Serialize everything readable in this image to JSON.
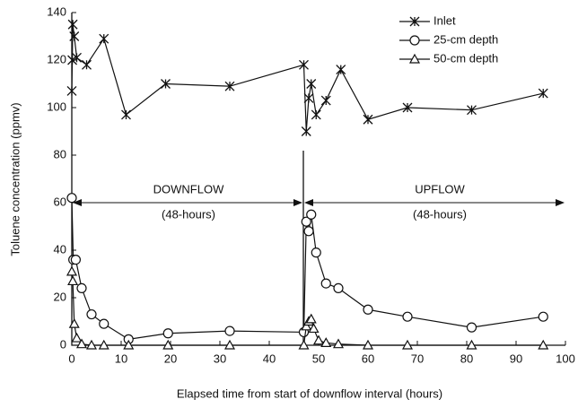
{
  "chart_data": {
    "type": "line",
    "x_label": "Elapsed time from start of downflow interval (hours)",
    "y_label": "Toluene concentration (ppmv)",
    "xlim": [
      0,
      100
    ],
    "xticks": [
      0,
      10,
      20,
      30,
      40,
      50,
      60,
      70,
      80,
      90,
      100
    ],
    "ylim": [
      0,
      140
    ],
    "yticks": [
      0,
      20,
      40,
      60,
      80,
      100,
      120,
      140
    ],
    "legend": "upper right",
    "annotations": [
      "DOWNFLOW",
      "(48-hours)",
      "UPFLOW",
      "(48-hours)"
    ],
    "series": [
      {
        "name": "Inlet",
        "color": "#111111",
        "marker": "asterisk",
        "x": [
          0,
          0.1,
          0.2,
          0.5,
          1,
          3,
          6.5,
          11,
          19,
          32,
          47,
          47.5,
          48,
          48.5,
          49.5,
          51.5,
          54.5,
          60,
          68,
          81,
          95.5
        ],
        "values": [
          107,
          120,
          135,
          130,
          121,
          118,
          129,
          97,
          110,
          109,
          118,
          90,
          104,
          110,
          97,
          103,
          116,
          95,
          100,
          99,
          106
        ]
      },
      {
        "name": "25-cm depth",
        "color": "#111111",
        "marker": "circle",
        "x": [
          0,
          0.3,
          0.8,
          2,
          4,
          6.5,
          11.5,
          19.5,
          32,
          47,
          47.5,
          48,
          48.5,
          49.5,
          51.5,
          54,
          60,
          68,
          81,
          95.5
        ],
        "values": [
          62,
          36,
          36,
          24,
          13,
          9,
          2.5,
          5,
          6,
          5.5,
          52,
          48,
          55,
          39,
          26,
          24,
          15,
          12,
          7.5,
          12
        ]
      },
      {
        "name": "50-cm depth",
        "color": "#111111",
        "marker": "triangle",
        "x": [
          0,
          0.2,
          0.5,
          1,
          2,
          4,
          6.5,
          11.5,
          19.5,
          32,
          47,
          47.5,
          48,
          48.5,
          49,
          50,
          51.5,
          54,
          60,
          68,
          81,
          95.5
        ],
        "values": [
          31,
          27,
          9,
          3,
          0.5,
          0,
          0,
          0,
          0,
          0,
          0,
          8,
          10,
          11,
          7,
          2,
          1,
          0.5,
          0,
          0,
          0,
          0
        ]
      }
    ]
  }
}
